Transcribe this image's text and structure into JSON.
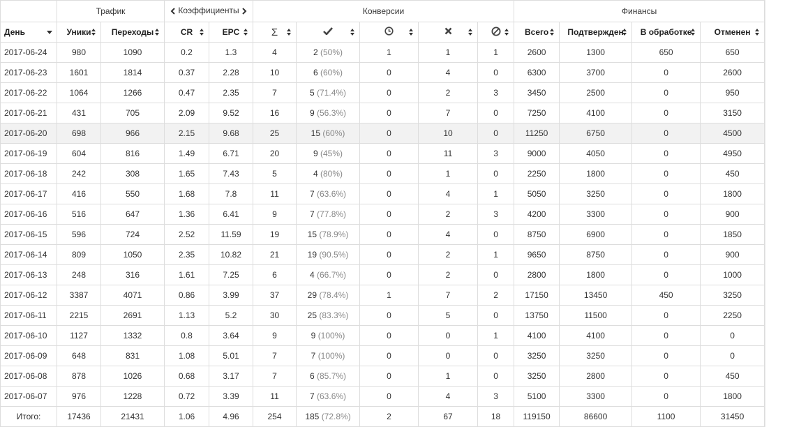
{
  "groups": {
    "traffic": "Трафик",
    "coefficients": "Коэффициенты",
    "conversions": "Конверсии",
    "finance": "Финансы"
  },
  "columns": {
    "day": "День",
    "uniques": "Уники",
    "clicks": "Переходы",
    "cr": "CR",
    "epc": "EPC",
    "total_conv_icon": "sigma-icon",
    "approved_icon": "checkmark-icon",
    "pending_icon": "clock-icon",
    "rejected_icon": "cross-icon",
    "cancelled_icon": "ban-icon",
    "fin_total": "Всего",
    "fin_confirmed": "Подтвержден",
    "fin_pending": "В обработке",
    "fin_cancelled": "Отменен"
  },
  "rows": [
    {
      "day": "2017-06-24",
      "uniques": "980",
      "clicks": "1090",
      "cr": "0.2",
      "epc": "1.3",
      "total": "4",
      "approved": "2",
      "approved_pct": "(50%)",
      "pending": "1",
      "rejected": "1",
      "cancelled": "1",
      "fin_total": "2600",
      "fin_confirmed": "1300",
      "fin_pending": "650",
      "fin_cancelled": "650"
    },
    {
      "day": "2017-06-23",
      "uniques": "1601",
      "clicks": "1814",
      "cr": "0.37",
      "epc": "2.28",
      "total": "10",
      "approved": "6",
      "approved_pct": "(60%)",
      "pending": "0",
      "rejected": "4",
      "cancelled": "0",
      "fin_total": "6300",
      "fin_confirmed": "3700",
      "fin_pending": "0",
      "fin_cancelled": "2600"
    },
    {
      "day": "2017-06-22",
      "uniques": "1064",
      "clicks": "1266",
      "cr": "0.47",
      "epc": "2.35",
      "total": "7",
      "approved": "5",
      "approved_pct": "(71.4%)",
      "pending": "0",
      "rejected": "2",
      "cancelled": "3",
      "fin_total": "3450",
      "fin_confirmed": "2500",
      "fin_pending": "0",
      "fin_cancelled": "950"
    },
    {
      "day": "2017-06-21",
      "uniques": "431",
      "clicks": "705",
      "cr": "2.09",
      "epc": "9.52",
      "total": "16",
      "approved": "9",
      "approved_pct": "(56.3%)",
      "pending": "0",
      "rejected": "7",
      "cancelled": "0",
      "fin_total": "7250",
      "fin_confirmed": "4100",
      "fin_pending": "0",
      "fin_cancelled": "3150"
    },
    {
      "day": "2017-06-20",
      "uniques": "698",
      "clicks": "966",
      "cr": "2.15",
      "epc": "9.68",
      "total": "25",
      "approved": "15",
      "approved_pct": "(60%)",
      "pending": "0",
      "rejected": "10",
      "cancelled": "0",
      "fin_total": "11250",
      "fin_confirmed": "6750",
      "fin_pending": "0",
      "fin_cancelled": "4500"
    },
    {
      "day": "2017-06-19",
      "uniques": "604",
      "clicks": "816",
      "cr": "1.49",
      "epc": "6.71",
      "total": "20",
      "approved": "9",
      "approved_pct": "(45%)",
      "pending": "0",
      "rejected": "11",
      "cancelled": "3",
      "fin_total": "9000",
      "fin_confirmed": "4050",
      "fin_pending": "0",
      "fin_cancelled": "4950"
    },
    {
      "day": "2017-06-18",
      "uniques": "242",
      "clicks": "308",
      "cr": "1.65",
      "epc": "7.43",
      "total": "5",
      "approved": "4",
      "approved_pct": "(80%)",
      "pending": "0",
      "rejected": "1",
      "cancelled": "0",
      "fin_total": "2250",
      "fin_confirmed": "1800",
      "fin_pending": "0",
      "fin_cancelled": "450"
    },
    {
      "day": "2017-06-17",
      "uniques": "416",
      "clicks": "550",
      "cr": "1.68",
      "epc": "7.8",
      "total": "11",
      "approved": "7",
      "approved_pct": "(63.6%)",
      "pending": "0",
      "rejected": "4",
      "cancelled": "1",
      "fin_total": "5050",
      "fin_confirmed": "3250",
      "fin_pending": "0",
      "fin_cancelled": "1800"
    },
    {
      "day": "2017-06-16",
      "uniques": "516",
      "clicks": "647",
      "cr": "1.36",
      "epc": "6.41",
      "total": "9",
      "approved": "7",
      "approved_pct": "(77.8%)",
      "pending": "0",
      "rejected": "2",
      "cancelled": "3",
      "fin_total": "4200",
      "fin_confirmed": "3300",
      "fin_pending": "0",
      "fin_cancelled": "900"
    },
    {
      "day": "2017-06-15",
      "uniques": "596",
      "clicks": "724",
      "cr": "2.52",
      "epc": "11.59",
      "total": "19",
      "approved": "15",
      "approved_pct": "(78.9%)",
      "pending": "0",
      "rejected": "4",
      "cancelled": "0",
      "fin_total": "8750",
      "fin_confirmed": "6900",
      "fin_pending": "0",
      "fin_cancelled": "1850"
    },
    {
      "day": "2017-06-14",
      "uniques": "809",
      "clicks": "1050",
      "cr": "2.35",
      "epc": "10.82",
      "total": "21",
      "approved": "19",
      "approved_pct": "(90.5%)",
      "pending": "0",
      "rejected": "2",
      "cancelled": "1",
      "fin_total": "9650",
      "fin_confirmed": "8750",
      "fin_pending": "0",
      "fin_cancelled": "900"
    },
    {
      "day": "2017-06-13",
      "uniques": "248",
      "clicks": "316",
      "cr": "1.61",
      "epc": "7.25",
      "total": "6",
      "approved": "4",
      "approved_pct": "(66.7%)",
      "pending": "0",
      "rejected": "2",
      "cancelled": "0",
      "fin_total": "2800",
      "fin_confirmed": "1800",
      "fin_pending": "0",
      "fin_cancelled": "1000"
    },
    {
      "day": "2017-06-12",
      "uniques": "3387",
      "clicks": "4071",
      "cr": "0.86",
      "epc": "3.99",
      "total": "37",
      "approved": "29",
      "approved_pct": "(78.4%)",
      "pending": "1",
      "rejected": "7",
      "cancelled": "2",
      "fin_total": "17150",
      "fin_confirmed": "13450",
      "fin_pending": "450",
      "fin_cancelled": "3250"
    },
    {
      "day": "2017-06-11",
      "uniques": "2215",
      "clicks": "2691",
      "cr": "1.13",
      "epc": "5.2",
      "total": "30",
      "approved": "25",
      "approved_pct": "(83.3%)",
      "pending": "0",
      "rejected": "5",
      "cancelled": "0",
      "fin_total": "13750",
      "fin_confirmed": "11500",
      "fin_pending": "0",
      "fin_cancelled": "2250"
    },
    {
      "day": "2017-06-10",
      "uniques": "1127",
      "clicks": "1332",
      "cr": "0.8",
      "epc": "3.64",
      "total": "9",
      "approved": "9",
      "approved_pct": "(100%)",
      "pending": "0",
      "rejected": "0",
      "cancelled": "1",
      "fin_total": "4100",
      "fin_confirmed": "4100",
      "fin_pending": "0",
      "fin_cancelled": "0"
    },
    {
      "day": "2017-06-09",
      "uniques": "648",
      "clicks": "831",
      "cr": "1.08",
      "epc": "5.01",
      "total": "7",
      "approved": "7",
      "approved_pct": "(100%)",
      "pending": "0",
      "rejected": "0",
      "cancelled": "0",
      "fin_total": "3250",
      "fin_confirmed": "3250",
      "fin_pending": "0",
      "fin_cancelled": "0"
    },
    {
      "day": "2017-06-08",
      "uniques": "878",
      "clicks": "1026",
      "cr": "0.68",
      "epc": "3.17",
      "total": "7",
      "approved": "6",
      "approved_pct": "(85.7%)",
      "pending": "0",
      "rejected": "1",
      "cancelled": "0",
      "fin_total": "3250",
      "fin_confirmed": "2800",
      "fin_pending": "0",
      "fin_cancelled": "450"
    },
    {
      "day": "2017-06-07",
      "uniques": "976",
      "clicks": "1228",
      "cr": "0.72",
      "epc": "3.39",
      "total": "11",
      "approved": "7",
      "approved_pct": "(63.6%)",
      "pending": "0",
      "rejected": "4",
      "cancelled": "3",
      "fin_total": "5100",
      "fin_confirmed": "3300",
      "fin_pending": "0",
      "fin_cancelled": "1800"
    }
  ],
  "totals": {
    "label": "Итого:",
    "uniques": "17436",
    "clicks": "21431",
    "cr": "1.06",
    "epc": "4.96",
    "total": "254",
    "approved": "185",
    "approved_pct": "(72.8%)",
    "pending": "2",
    "rejected": "67",
    "cancelled": "18",
    "fin_total": "119150",
    "fin_confirmed": "86600",
    "fin_pending": "1100",
    "fin_cancelled": "31450"
  },
  "highlight_row": "2017-06-20",
  "colors": {
    "border": "#dddddd",
    "highlight": "#f2f2f2",
    "muted": "#888888"
  }
}
